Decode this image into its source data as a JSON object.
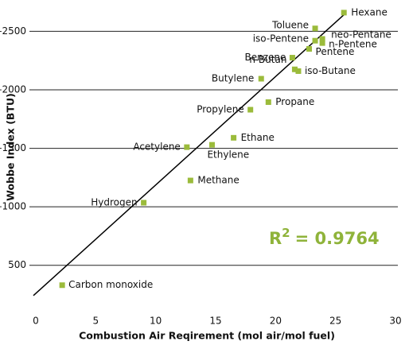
{
  "chart_data": {
    "type": "scatter",
    "x_label": "Combustion Air Reqirement (mol air/mol fuel)",
    "y_label": "Wobbe Index (BTU)",
    "annotation": {
      "base": "R",
      "sup": "2",
      "rest": "= 0.9764"
    },
    "color": "#9bbb3b",
    "annotation_color": "#8fb33a",
    "xlim": [
      0,
      30
    ],
    "ylim": [
      70,
      2700
    ],
    "xticks": [
      0,
      5,
      10,
      15,
      20,
      25,
      30
    ],
    "yticks": [
      {
        "value": 500,
        "label": "500"
      },
      {
        "value": 1000,
        "label": "–1000"
      },
      {
        "value": 1500,
        "label": "–1500"
      },
      {
        "value": 2000,
        "label": "–2000"
      },
      {
        "value": 2500,
        "label": "–2500"
      }
    ],
    "grid": true,
    "labels": [
      "Carbon monoxide",
      "Hydrogen",
      "Methane",
      "Acetylene",
      "Ethylene",
      "Ethane",
      "Propylene",
      "Propane",
      "Butylene",
      "n-Butan",
      "iso-Butane",
      "Benzene",
      "Pentene",
      "iso-Pentene",
      "n-Pentene",
      "neo-Pentane",
      "Toluene",
      "Hexane"
    ],
    "x": [
      2.2,
      9.0,
      12.9,
      12.6,
      14.7,
      16.5,
      17.9,
      19.4,
      18.8,
      21.6,
      21.9,
      21.4,
      22.8,
      23.3,
      23.9,
      23.9,
      23.3,
      25.7
    ],
    "y": [
      330,
      1035,
      1225,
      1510,
      1530,
      1590,
      1830,
      1895,
      2095,
      2175,
      2160,
      2275,
      2350,
      2420,
      2400,
      2435,
      2525,
      2660
    ],
    "trendline": {
      "x": [
        -0.2,
        25.7
      ],
      "y": [
        241,
        2642
      ]
    }
  }
}
